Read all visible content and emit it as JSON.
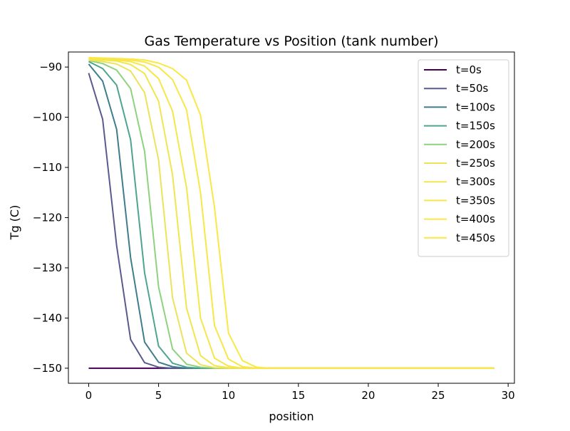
{
  "chart_data": {
    "type": "line",
    "title": "Gas Temperature vs Position (tank number)",
    "xlabel": "position",
    "ylabel": "Tg (C)",
    "xlim": [
      -1.45,
      30.45
    ],
    "ylim": [
      -153,
      -87
    ],
    "xticks": [
      0,
      5,
      10,
      15,
      20,
      25,
      30
    ],
    "yticks": [
      -150,
      -140,
      -130,
      -120,
      -110,
      -100,
      -90
    ],
    "ytick_labels": [
      "−150",
      "−140",
      "−130",
      "−120",
      "−110",
      "−100",
      "−90"
    ],
    "grid": false,
    "legend_position": "upper right",
    "x": [
      0,
      1,
      2,
      3,
      4,
      5,
      6,
      7,
      8,
      9,
      10,
      11,
      12,
      13,
      14,
      15,
      16,
      17,
      18,
      19,
      20,
      21,
      22,
      23,
      24,
      25,
      26,
      27,
      28,
      29
    ],
    "series": [
      {
        "name": "t=0s",
        "color": "#440154",
        "values": [
          -150,
          -150,
          -150,
          -150,
          -150,
          -150,
          -150,
          -150,
          -150,
          -150,
          -150,
          -150,
          -150,
          -150,
          -150,
          -150,
          -150,
          -150,
          -150,
          -150,
          -150,
          -150,
          -150,
          -150,
          -150,
          -150,
          -150,
          -150,
          -150,
          -150
        ]
      },
      {
        "name": "t=50s",
        "color": "#5b5a8e",
        "values": [
          -91.2,
          -100.4,
          -125.6,
          -144.3,
          -148.9,
          -149.8,
          -150,
          -150,
          -150,
          -150,
          -150,
          -150,
          -150,
          -150,
          -150,
          -150,
          -150,
          -150,
          -150,
          -150,
          -150,
          -150,
          -150,
          -150,
          -150,
          -150,
          -150,
          -150,
          -150,
          -150
        ]
      },
      {
        "name": "t=100s",
        "color": "#3e7c8e",
        "values": [
          -89.4,
          -92.8,
          -102.4,
          -128.0,
          -144.8,
          -148.8,
          -149.7,
          -150,
          -150,
          -150,
          -150,
          -150,
          -150,
          -150,
          -150,
          -150,
          -150,
          -150,
          -150,
          -150,
          -150,
          -150,
          -150,
          -150,
          -150,
          -150,
          -150,
          -150,
          -150,
          -150
        ]
      },
      {
        "name": "t=150s",
        "color": "#4ea48e",
        "values": [
          -88.9,
          -90.3,
          -93.6,
          -104.5,
          -131.0,
          -145.6,
          -149.0,
          -149.8,
          -150,
          -150,
          -150,
          -150,
          -150,
          -150,
          -150,
          -150,
          -150,
          -150,
          -150,
          -150,
          -150,
          -150,
          -150,
          -150,
          -150,
          -150,
          -150,
          -150,
          -150,
          -150
        ]
      },
      {
        "name": "t=200s",
        "color": "#8fd27e",
        "values": [
          -88.7,
          -89.3,
          -90.6,
          -94.3,
          -106.8,
          -133.8,
          -146.2,
          -149.2,
          -149.8,
          -150,
          -150,
          -150,
          -150,
          -150,
          -150,
          -150,
          -150,
          -150,
          -150,
          -150,
          -150,
          -150,
          -150,
          -150,
          -150,
          -150,
          -150,
          -150,
          -150,
          -150
        ]
      },
      {
        "name": "t=250s",
        "color": "#ece35a",
        "values": [
          -88.6,
          -88.9,
          -89.4,
          -90.8,
          -95.1,
          -108.5,
          -136.0,
          -147.0,
          -149.3,
          -149.9,
          -150,
          -150,
          -150,
          -150,
          -150,
          -150,
          -150,
          -150,
          -150,
          -150,
          -150,
          -150,
          -150,
          -150,
          -150,
          -150,
          -150,
          -150,
          -150,
          -150
        ]
      },
      {
        "name": "t=300s",
        "color": "#f2e54f",
        "values": [
          -88.5,
          -88.6,
          -88.8,
          -89.5,
          -91.3,
          -96.8,
          -111.5,
          -138.0,
          -147.5,
          -149.5,
          -149.9,
          -150,
          -150,
          -150,
          -150,
          -150,
          -150,
          -150,
          -150,
          -150,
          -150,
          -150,
          -150,
          -150,
          -150,
          -150,
          -150,
          -150,
          -150,
          -150
        ]
      },
      {
        "name": "t=350s",
        "color": "#f5e64a",
        "values": [
          -88.4,
          -88.5,
          -88.6,
          -88.9,
          -89.8,
          -92.3,
          -98.8,
          -114.0,
          -140.0,
          -148.0,
          -149.6,
          -150,
          -150,
          -150,
          -150,
          -150,
          -150,
          -150,
          -150,
          -150,
          -150,
          -150,
          -150,
          -150,
          -150,
          -150,
          -150,
          -150,
          -150,
          -150
        ]
      },
      {
        "name": "t=400s",
        "color": "#f7e747",
        "values": [
          -88.3,
          -88.4,
          -88.5,
          -88.6,
          -89.0,
          -90.0,
          -92.5,
          -98.5,
          -115.0,
          -141.5,
          -148.2,
          -149.7,
          -150,
          -150,
          -150,
          -150,
          -150,
          -150,
          -150,
          -150,
          -150,
          -150,
          -150,
          -150,
          -150,
          -150,
          -150,
          -150,
          -150,
          -150
        ]
      },
      {
        "name": "t=450s",
        "color": "#f9e845",
        "values": [
          -88.1,
          -88.2,
          -88.3,
          -88.4,
          -88.6,
          -89.2,
          -90.3,
          -92.6,
          -99.6,
          -118.0,
          -143.0,
          -148.5,
          -149.8,
          -150,
          -150,
          -150,
          -150,
          -150,
          -150,
          -150,
          -150,
          -150,
          -150,
          -150,
          -150,
          -150,
          -150,
          -150,
          -150,
          -150
        ]
      }
    ]
  }
}
